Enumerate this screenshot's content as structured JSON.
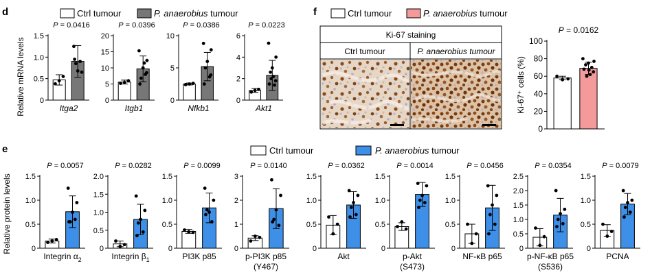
{
  "panels": {
    "d": {
      "letter": "d",
      "ylabel": "Relative mRNA levels",
      "legend": [
        {
          "label": "Ctrl tumour",
          "italic": false,
          "color": "#ffffff"
        },
        {
          "label": "P. anaerobius",
          "suffix": " tumour",
          "italic": true,
          "color": "#777777"
        }
      ]
    },
    "e": {
      "letter": "e",
      "ylabel": "Relative protein levels",
      "legend": [
        {
          "label": "Ctrl tumour",
          "italic": false,
          "color": "#ffffff"
        },
        {
          "label": "P. anaerobius",
          "suffix": " tumour",
          "italic": true,
          "color": "#3d8fe8"
        }
      ]
    },
    "f": {
      "letter": "f",
      "legend": [
        {
          "label": "Ctrl tumour",
          "italic": false,
          "color": "#ffffff"
        },
        {
          "label": "P. anaerobius",
          "suffix": " tumour",
          "italic": true,
          "color": "#f49a9a"
        }
      ],
      "micrograph": {
        "header": "Ki-67 staining",
        "left_label": "Ctrl tumour",
        "right_label": "P. anaerobius tumour"
      }
    }
  },
  "chart_data": [
    {
      "id": "itga2",
      "panel": "d",
      "type": "bar",
      "title": "P = 0.0416",
      "xlabel": "Itga2",
      "xlabel_italic": true,
      "ylim": [
        0,
        1.5
      ],
      "yticks": [
        "0",
        "0.5",
        "1.0",
        "1.5"
      ],
      "colors": [
        "#ffffff",
        "#777777"
      ],
      "series": [
        {
          "name": "Ctrl tumour",
          "value": 0.47,
          "err": 0.12,
          "points": [
            0.38,
            0.55,
            0.45
          ]
        },
        {
          "name": "P. anaerobius tumour",
          "value": 0.9,
          "err": 0.37,
          "points": [
            1.25,
            0.65,
            0.68,
            0.85,
            0.9,
            0.95
          ]
        }
      ]
    },
    {
      "id": "itgb1",
      "panel": "d",
      "type": "bar",
      "title": "P = 0.0396",
      "xlabel": "Itgb1",
      "xlabel_italic": true,
      "ylim": [
        0,
        20
      ],
      "yticks": [
        "0",
        "5",
        "10",
        "15",
        "20"
      ],
      "colors": [
        "#ffffff",
        "#777777"
      ],
      "series": [
        {
          "name": "Ctrl tumour",
          "value": 5.6,
          "err": 0.6,
          "points": [
            5.2,
            6.0,
            5.5
          ]
        },
        {
          "name": "P. anaerobius tumour",
          "value": 9.7,
          "err": 4.0,
          "points": [
            15.3,
            12.3,
            10.0,
            6.8,
            8.0,
            5.0,
            8.5,
            11.5
          ]
        }
      ]
    },
    {
      "id": "nfkb1",
      "panel": "d",
      "type": "bar",
      "title": "P = 0.0386",
      "xlabel": "Nfkb1",
      "xlabel_italic": true,
      "ylim": [
        0,
        10
      ],
      "yticks": [
        "0",
        "5",
        "10"
      ],
      "colors": [
        "#ffffff",
        "#777777"
      ],
      "series": [
        {
          "name": "Ctrl tumour",
          "value": 2.5,
          "err": 0.15,
          "points": [
            2.4,
            2.6,
            2.5
          ]
        },
        {
          "name": "P. anaerobius tumour",
          "value": 5.2,
          "err": 2.2,
          "points": [
            8.8,
            7.8,
            6.0,
            5.0,
            3.6,
            2.5,
            3.9
          ]
        }
      ]
    },
    {
      "id": "akt1",
      "panel": "d",
      "type": "bar",
      "title": "P = 0.0223",
      "xlabel": "Akt1",
      "xlabel_italic": true,
      "ylim": [
        0,
        6
      ],
      "yticks": [
        "0",
        "2",
        "4",
        "6"
      ],
      "colors": [
        "#ffffff",
        "#777777"
      ],
      "series": [
        {
          "name": "Ctrl tumour",
          "value": 0.9,
          "err": 0.18,
          "points": [
            0.75,
            1.0,
            0.9
          ]
        },
        {
          "name": "P. anaerobius tumour",
          "value": 2.3,
          "err": 1.4,
          "points": [
            5.3,
            4.0,
            3.0,
            2.6,
            1.4,
            1.5,
            1.8,
            2.2,
            2.0
          ]
        }
      ]
    },
    {
      "id": "integrin-a2",
      "panel": "e",
      "type": "bar",
      "title": "P = 0.0057",
      "xlabel": "Integrin α",
      "xlabel_sub": "2",
      "ylim": [
        0,
        1.5
      ],
      "yticks": [
        "0",
        "0.5",
        "1.0",
        "1.5"
      ],
      "colors": [
        "#ffffff",
        "#3d8fe8"
      ],
      "series": [
        {
          "name": "Ctrl tumour",
          "value": 0.15,
          "err": 0.04,
          "points": [
            0.12,
            0.18,
            0.15
          ]
        },
        {
          "name": "P. anaerobius tumour",
          "value": 0.76,
          "err": 0.33,
          "points": [
            1.25,
            0.95,
            0.75,
            0.55,
            0.6,
            0.55
          ]
        }
      ]
    },
    {
      "id": "integrin-b1",
      "panel": "e",
      "type": "bar",
      "title": "P = 0.0282",
      "xlabel": "Integrin β",
      "xlabel_sub": "1",
      "ylim": [
        0,
        2.0
      ],
      "yticks": [
        "0",
        "0.5",
        "1.0",
        "1.5",
        "2.0"
      ],
      "colors": [
        "#ffffff",
        "#3d8fe8"
      ],
      "series": [
        {
          "name": "Ctrl tumour",
          "value": 0.12,
          "err": 0.08,
          "points": [
            0.2,
            0.1,
            0.05
          ]
        },
        {
          "name": "P. anaerobius tumour",
          "value": 0.8,
          "err": 0.42,
          "points": [
            1.45,
            1.05,
            0.8,
            0.7,
            0.45,
            0.35
          ]
        }
      ]
    },
    {
      "id": "pi3k-p85",
      "panel": "e",
      "type": "bar",
      "title": "P = 0.0099",
      "xlabel": "PI3K p85",
      "ylim": [
        0,
        1.5
      ],
      "yticks": [
        "0",
        "0.5",
        "1.0",
        "1.5"
      ],
      "colors": [
        "#ffffff",
        "#3d8fe8"
      ],
      "series": [
        {
          "name": "Ctrl tumour",
          "value": 0.35,
          "err": 0.04,
          "points": [
            0.38,
            0.33,
            0.34
          ]
        },
        {
          "name": "P. anaerobius tumour",
          "value": 0.84,
          "err": 0.31,
          "points": [
            1.25,
            1.0,
            0.75,
            0.8,
            0.55,
            0.7
          ]
        }
      ]
    },
    {
      "id": "p-pi3k-p85",
      "panel": "e",
      "type": "bar",
      "title": "P = 0.0140",
      "xlabel": "p-PI3K p85",
      "xlabel2": "(Y467)",
      "ylim": [
        0,
        3
      ],
      "yticks": [
        "0",
        "1",
        "2",
        "3"
      ],
      "colors": [
        "#ffffff",
        "#3d8fe8"
      ],
      "series": [
        {
          "name": "Ctrl tumour",
          "value": 0.42,
          "err": 0.1,
          "points": [
            0.3,
            0.45,
            0.5
          ]
        },
        {
          "name": "P. anaerobius tumour",
          "value": 1.65,
          "err": 0.83,
          "points": [
            2.85,
            2.2,
            1.6,
            1.2,
            0.95,
            1.1
          ]
        }
      ]
    },
    {
      "id": "akt",
      "panel": "e",
      "type": "bar",
      "title": "P = 0.0362",
      "xlabel": "Akt",
      "ylim": [
        0,
        1.5
      ],
      "yticks": [
        "0",
        "0.5",
        "1.0",
        "1.5"
      ],
      "colors": [
        "#ffffff",
        "#3d8fe8"
      ],
      "series": [
        {
          "name": "Ctrl tumour",
          "value": 0.48,
          "err": 0.2,
          "points": [
            0.65,
            0.5,
            0.3
          ]
        },
        {
          "name": "P. anaerobius tumour",
          "value": 0.9,
          "err": 0.28,
          "points": [
            1.2,
            1.1,
            0.95,
            0.85,
            0.7,
            0.65
          ]
        }
      ]
    },
    {
      "id": "p-akt",
      "panel": "e",
      "type": "bar",
      "title": "P = 0.0014",
      "xlabel": "p-Akt",
      "xlabel2": "(S473)",
      "ylim": [
        0,
        1.5
      ],
      "yticks": [
        "0",
        "0.5",
        "1.0",
        "1.5"
      ],
      "colors": [
        "#ffffff",
        "#3d8fe8"
      ],
      "series": [
        {
          "name": "Ctrl tumour",
          "value": 0.45,
          "err": 0.08,
          "points": [
            0.45,
            0.4,
            0.55
          ]
        },
        {
          "name": "P. anaerobius tumour",
          "value": 1.12,
          "err": 0.25,
          "points": [
            1.35,
            1.3,
            1.1,
            1.0,
            0.95,
            0.85
          ]
        }
      ]
    },
    {
      "id": "nf-kb-p65",
      "panel": "e",
      "type": "bar",
      "title": "P = 0.0456",
      "xlabel": "NF-κB p65",
      "ylim": [
        0,
        1.5
      ],
      "yticks": [
        "0",
        "0.5",
        "1.0",
        "1.5"
      ],
      "colors": [
        "#ffffff",
        "#3d8fe8"
      ],
      "series": [
        {
          "name": "Ctrl tumour",
          "value": 0.3,
          "err": 0.2,
          "points": [
            0.5,
            0.3,
            0.1
          ]
        },
        {
          "name": "P. anaerobius tumour",
          "value": 0.84,
          "err": 0.47,
          "points": [
            1.3,
            1.1,
            0.9,
            0.7,
            0.5,
            0.3
          ]
        }
      ]
    },
    {
      "id": "p-nf-kb-p65",
      "panel": "e",
      "type": "bar",
      "title": "P = 0.0354",
      "xlabel": "p-NF-κB p65",
      "xlabel2": "(S536)",
      "ylim": [
        0,
        2.5
      ],
      "yticks": [
        "0",
        "0.5",
        "1.0",
        "1.5",
        "2.0",
        "2.5"
      ],
      "colors": [
        "#ffffff",
        "#3d8fe8"
      ],
      "series": [
        {
          "name": "Ctrl tumour",
          "value": 0.38,
          "err": 0.3,
          "points": [
            0.7,
            0.4,
            0.1
          ]
        },
        {
          "name": "P. anaerobius tumour",
          "value": 1.15,
          "err": 0.58,
          "points": [
            2.0,
            1.35,
            1.2,
            1.0,
            0.85,
            0.75
          ]
        }
      ]
    },
    {
      "id": "pcna",
      "panel": "e",
      "type": "bar",
      "title": "P = 0.0079",
      "xlabel": "PCNA",
      "ylim": [
        0,
        1.5
      ],
      "yticks": [
        "0",
        "0.5",
        "1.0",
        "1.5"
      ],
      "colors": [
        "#ffffff",
        "#3d8fe8"
      ],
      "series": [
        {
          "name": "Ctrl tumour",
          "value": 0.37,
          "err": 0.12,
          "points": [
            0.5,
            0.35,
            0.25
          ]
        },
        {
          "name": "P. anaerobius tumour",
          "value": 0.92,
          "err": 0.22,
          "points": [
            1.2,
            1.0,
            0.95,
            0.85,
            0.75,
            0.65
          ]
        }
      ]
    },
    {
      "id": "ki67",
      "panel": "f",
      "type": "bar",
      "title": "P = 0.0162",
      "ylabel": "Ki-67⁺ cells (%)",
      "xlabel": "",
      "ylim": [
        0,
        100
      ],
      "yticks": [
        "0",
        "20",
        "40",
        "60",
        "80",
        "100"
      ],
      "colors": [
        "#ffffff",
        "#f49a9a"
      ],
      "series": [
        {
          "name": "Ctrl tumour",
          "value": 58,
          "err": 2,
          "points": [
            60,
            57,
            56
          ]
        },
        {
          "name": "P. anaerobius tumour",
          "value": 69,
          "err": 7,
          "points": [
            80,
            77,
            75,
            73,
            70,
            68,
            65,
            62,
            60,
            67
          ]
        }
      ]
    }
  ]
}
